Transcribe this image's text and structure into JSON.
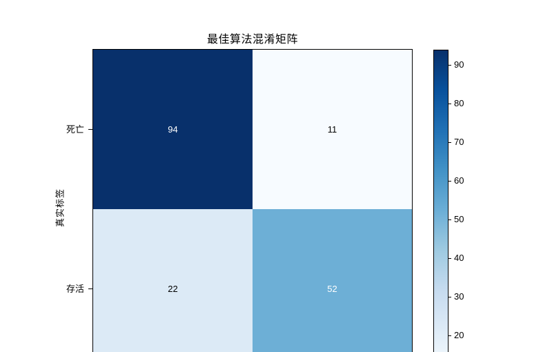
{
  "chart_data": {
    "type": "heatmap",
    "title": "最佳算法混淆矩阵",
    "ylabel": "真实标签",
    "row_labels": [
      "死亡",
      "存活"
    ],
    "matrix": [
      [
        94,
        11
      ],
      [
        22,
        52
      ]
    ],
    "colormap": "Blues",
    "vmin": 11,
    "vmax": 94,
    "grid": false,
    "legend": "none",
    "note_layout": "x-axis labels cut off at bottom edge of image",
    "cells": [
      {
        "true_label": "死亡",
        "col_index": 0,
        "value": "94",
        "color": "#08306b",
        "text_color": "#ffffff"
      },
      {
        "true_label": "死亡",
        "col_index": 1,
        "value": "11",
        "color": "#f7fbff",
        "text_color": "#000000"
      },
      {
        "true_label": "存活",
        "col_index": 0,
        "value": "22",
        "color": "#dceaf6",
        "text_color": "#000000"
      },
      {
        "true_label": "存活",
        "col_index": 1,
        "value": "52",
        "color": "#6dafd6",
        "text_color": "#ffffff"
      }
    ],
    "colorbar": {
      "tick_labels": [
        "90",
        "80",
        "70",
        "60",
        "50",
        "40",
        "30",
        "20"
      ],
      "gradient_stops": [
        {
          "color": "#08306b",
          "pos": "0%"
        },
        {
          "color": "#08519c",
          "pos": "13.2%"
        },
        {
          "color": "#2171b5",
          "pos": "26.5%"
        },
        {
          "color": "#4292c6",
          "pos": "39.7%"
        },
        {
          "color": "#6baed6",
          "pos": "53.0%"
        },
        {
          "color": "#9ecae1",
          "pos": "66.2%"
        },
        {
          "color": "#c6dbef",
          "pos": "79.5%"
        },
        {
          "color": "#deebf7",
          "pos": "92.7%"
        },
        {
          "color": "#ebf4fb",
          "pos": "100%"
        }
      ]
    }
  }
}
